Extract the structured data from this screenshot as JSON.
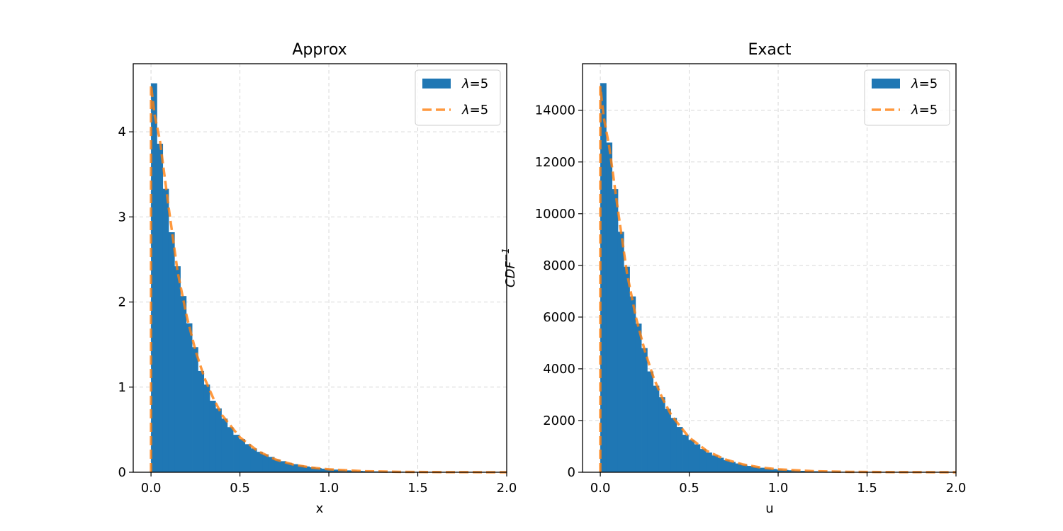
{
  "colors": {
    "hist": "#1f77b4",
    "pdf": "#ff7f0e",
    "grid": "#b0b0b0",
    "axes": "#000000"
  },
  "chart_data": [
    {
      "type": "bar",
      "subtype": "histogram-with-line",
      "title": "Approx",
      "xlabel": "x",
      "ylabel": "",
      "xlim": [
        -0.1,
        2.0
      ],
      "ylim": [
        0,
        4.8
      ],
      "xticks": [
        0.0,
        0.5,
        1.0,
        1.5,
        2.0
      ],
      "xtick_labels": [
        "0.0",
        "0.5",
        "1.0",
        "1.5",
        "2.0"
      ],
      "yticks": [
        0,
        1,
        2,
        3,
        4
      ],
      "ytick_labels": [
        "0",
        "1",
        "2",
        "3",
        "4"
      ],
      "grid": true,
      "legend": {
        "placement": "upper right",
        "entries": [
          {
            "symbol": "λ",
            "text": "=5",
            "kind": "patch"
          },
          {
            "symbol": "λ",
            "text": "=5",
            "kind": "dashed-line"
          }
        ]
      },
      "histogram": {
        "bin_width": 0.033,
        "start": 0.0,
        "values": [
          4.57,
          3.86,
          3.33,
          2.82,
          2.42,
          2.07,
          1.75,
          1.47,
          1.19,
          1.03,
          0.84,
          0.75,
          0.63,
          0.53,
          0.44,
          0.39,
          0.33,
          0.28,
          0.24,
          0.21,
          0.18,
          0.15,
          0.13,
          0.11,
          0.095,
          0.08,
          0.068,
          0.058,
          0.05,
          0.042,
          0.036,
          0.031,
          0.026,
          0.022,
          0.019,
          0.016,
          0.014,
          0.012,
          0.01,
          0.009,
          0.008,
          0.007,
          0.006,
          0.005,
          0.004,
          0.0035,
          0.003,
          0.0025,
          0.002,
          0.0015
        ]
      },
      "line": {
        "style": "dashed",
        "x": [
          0.0,
          0.0,
          0.02,
          0.05,
          0.1,
          0.15,
          0.2,
          0.25,
          0.3,
          0.35,
          0.4,
          0.5,
          0.6,
          0.7,
          0.8,
          0.9,
          1.0,
          1.2,
          1.4,
          1.6,
          1.8,
          2.0
        ],
        "y": [
          0.0,
          4.55,
          4.2,
          3.9,
          3.1,
          2.35,
          1.84,
          1.43,
          1.11,
          0.87,
          0.67,
          0.41,
          0.25,
          0.15,
          0.09,
          0.055,
          0.034,
          0.012,
          0.0045,
          0.0017,
          0.0006,
          0.0002
        ]
      }
    },
    {
      "type": "bar",
      "subtype": "histogram-with-line",
      "title": "Exact",
      "xlabel": "u",
      "ylabel": "CDF−1",
      "ylabel_parts": {
        "base": "CDF",
        "sup": "−1"
      },
      "xlim": [
        -0.1,
        2.0
      ],
      "ylim": [
        0,
        15800
      ],
      "xticks": [
        0.0,
        0.5,
        1.0,
        1.5,
        2.0
      ],
      "xtick_labels": [
        "0.0",
        "0.5",
        "1.0",
        "1.5",
        "2.0"
      ],
      "yticks": [
        0,
        2000,
        4000,
        6000,
        8000,
        10000,
        12000,
        14000
      ],
      "ytick_labels": [
        "0",
        "2000",
        "4000",
        "6000",
        "8000",
        "10000",
        "12000",
        "14000"
      ],
      "grid": true,
      "legend": {
        "placement": "upper right",
        "entries": [
          {
            "symbol": "λ",
            "text": "=5",
            "kind": "patch"
          },
          {
            "symbol": "λ",
            "text": "=5",
            "kind": "dashed-line"
          }
        ]
      },
      "histogram": {
        "bin_width": 0.033,
        "start": 0.0,
        "values": [
          15050,
          12750,
          10950,
          9300,
          7950,
          6800,
          5750,
          4800,
          3900,
          3350,
          2900,
          2450,
          2100,
          1750,
          1450,
          1250,
          1080,
          900,
          760,
          650,
          560,
          470,
          400,
          340,
          290,
          245,
          205,
          175,
          150,
          125,
          105,
          90,
          76,
          64,
          54,
          46,
          39,
          33,
          28,
          24,
          20,
          17,
          14,
          12,
          10,
          8,
          7,
          6,
          5,
          4
        ]
      },
      "line": {
        "style": "dashed",
        "x": [
          0.0,
          0.0,
          0.02,
          0.05,
          0.1,
          0.15,
          0.2,
          0.25,
          0.3,
          0.35,
          0.4,
          0.5,
          0.6,
          0.7,
          0.8,
          0.9,
          1.0,
          1.2,
          1.4,
          1.6,
          1.8,
          2.0
        ],
        "y": [
          0.0,
          14900,
          13700,
          12600,
          10100,
          7700,
          6000,
          4700,
          3650,
          2850,
          2200,
          1340,
          820,
          500,
          305,
          185,
          113,
          42,
          15,
          6,
          2,
          1
        ]
      }
    }
  ]
}
